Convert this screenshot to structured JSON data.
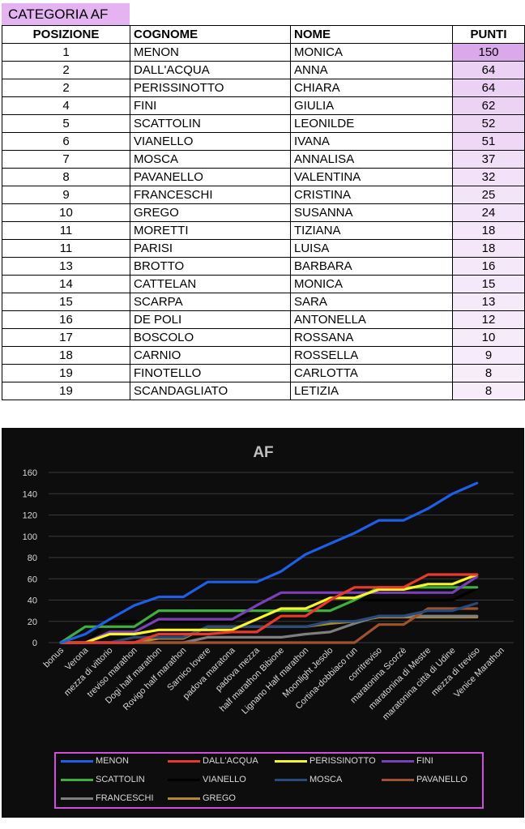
{
  "category_title": "CATEGORIA AF",
  "table": {
    "headers": [
      "POSIZIONE",
      "COGNOME",
      "NOME",
      "PUNTI"
    ],
    "rows": [
      [
        "1",
        "MENON",
        "MONICA",
        "150"
      ],
      [
        "2",
        "DALL'ACQUA",
        "ANNA",
        "64"
      ],
      [
        "2",
        "PERISSINOTTO",
        "CHIARA",
        "64"
      ],
      [
        "4",
        "FINI",
        "GIULIA",
        "62"
      ],
      [
        "5",
        "SCATTOLIN",
        "LEONILDE",
        "52"
      ],
      [
        "6",
        "VIANELLO",
        "IVANA",
        "51"
      ],
      [
        "7",
        "MOSCA",
        "ANNALISA",
        "37"
      ],
      [
        "8",
        "PAVANELLO",
        "VALENTINA",
        "32"
      ],
      [
        "9",
        "FRANCESCHI",
        "CRISTINA",
        "25"
      ],
      [
        "10",
        "GREGO",
        "SUSANNA",
        "24"
      ],
      [
        "11",
        "MORETTI",
        "TIZIANA",
        "18"
      ],
      [
        "11",
        "PARISI",
        "LUISA",
        "18"
      ],
      [
        "13",
        "BROTTO",
        "BARBARA",
        "16"
      ],
      [
        "14",
        "CATTELAN",
        "MONICA",
        "15"
      ],
      [
        "15",
        "SCARPA",
        "SARA",
        "13"
      ],
      [
        "16",
        "DE POLI",
        "ANTONELLA",
        "12"
      ],
      [
        "17",
        "BOSCOLO",
        "ROSSANA",
        "10"
      ],
      [
        "18",
        "CARNIO",
        "ROSSELLA",
        "9"
      ],
      [
        "19",
        "FINOTELLO",
        "CARLOTTA",
        "8"
      ],
      [
        "19",
        "SCANDAGLIATO",
        "LETIZIA",
        "8"
      ]
    ],
    "points_bar_color": "#c77fe0"
  },
  "chart_data": {
    "type": "line",
    "title": "AF",
    "categories": [
      "bonus",
      "Verona",
      "mezza di vittorio",
      "treviso marathon",
      "Dogi half marathon",
      "Rovigo half marathon",
      "Sarnico lovere",
      "padova maratona",
      "padova mezza",
      "half marathon Bibione",
      "Lignano Half marathon",
      "Moonlight Jesolo",
      "Cortina-dobbiaco run",
      "corritreviso",
      "maratonina Scorzè",
      "maratonina di Mestre",
      "maratonina città di Udine",
      "mezza di treviso",
      "Venice Marathon"
    ],
    "ylim": [
      0,
      160
    ],
    "yticks": [
      0,
      20,
      40,
      60,
      80,
      100,
      120,
      140,
      160
    ],
    "grid": true,
    "legend_position": "bottom",
    "series": [
      {
        "name": "MENON",
        "color": "#1f5fe8",
        "values": [
          0,
          8,
          22,
          35,
          43,
          43,
          57,
          57,
          57,
          67,
          83,
          93,
          103,
          115,
          115,
          126,
          140,
          150,
          null
        ]
      },
      {
        "name": "DALL'ACQUA",
        "color": "#e8392b",
        "values": [
          0,
          0,
          0,
          0,
          8,
          8,
          8,
          10,
          10,
          25,
          25,
          40,
          52,
          52,
          52,
          64,
          64,
          64,
          null
        ]
      },
      {
        "name": "PERISSINOTTO",
        "color": "#f5f52a",
        "values": [
          0,
          0,
          8,
          8,
          12,
          12,
          12,
          12,
          22,
          32,
          32,
          42,
          42,
          50,
          50,
          55,
          55,
          64,
          null
        ]
      },
      {
        "name": "FINI",
        "color": "#7b3fb8",
        "values": [
          0,
          0,
          10,
          10,
          22,
          22,
          22,
          22,
          35,
          47,
          47,
          47,
          47,
          47,
          47,
          47,
          47,
          62,
          null
        ]
      },
      {
        "name": "SCATTOLIN",
        "color": "#3fae3f",
        "values": [
          0,
          15,
          15,
          15,
          30,
          30,
          30,
          30,
          30,
          30,
          30,
          30,
          40,
          52,
          52,
          52,
          52,
          52,
          null
        ]
      },
      {
        "name": "VIANELLO",
        "color": "#000000",
        "values": [
          0,
          0,
          20,
          20,
          20,
          20,
          20,
          20,
          30,
          30,
          30,
          30,
          40,
          40,
          40,
          40,
          40,
          51,
          null
        ]
      },
      {
        "name": "MOSCA",
        "color": "#2a4a7a",
        "values": [
          0,
          0,
          0,
          5,
          5,
          5,
          15,
          15,
          15,
          15,
          15,
          20,
          20,
          25,
          25,
          30,
          30,
          37,
          null
        ]
      },
      {
        "name": "PAVANELLO",
        "color": "#a0522d",
        "values": [
          0,
          0,
          0,
          0,
          0,
          0,
          0,
          0,
          0,
          0,
          0,
          0,
          0,
          17,
          17,
          32,
          32,
          32,
          null
        ]
      },
      {
        "name": "FRANCESCHI",
        "color": "#7f7f7f",
        "values": [
          0,
          0,
          0,
          0,
          0,
          0,
          5,
          5,
          5,
          5,
          8,
          10,
          18,
          25,
          25,
          25,
          25,
          25,
          null
        ]
      },
      {
        "name": "GREGO",
        "color": "#b08a2e",
        "values": [
          0,
          0,
          0,
          0,
          4,
          4,
          15,
          15,
          15,
          15,
          15,
          18,
          20,
          24,
          24,
          24,
          24,
          24,
          null
        ]
      }
    ]
  }
}
